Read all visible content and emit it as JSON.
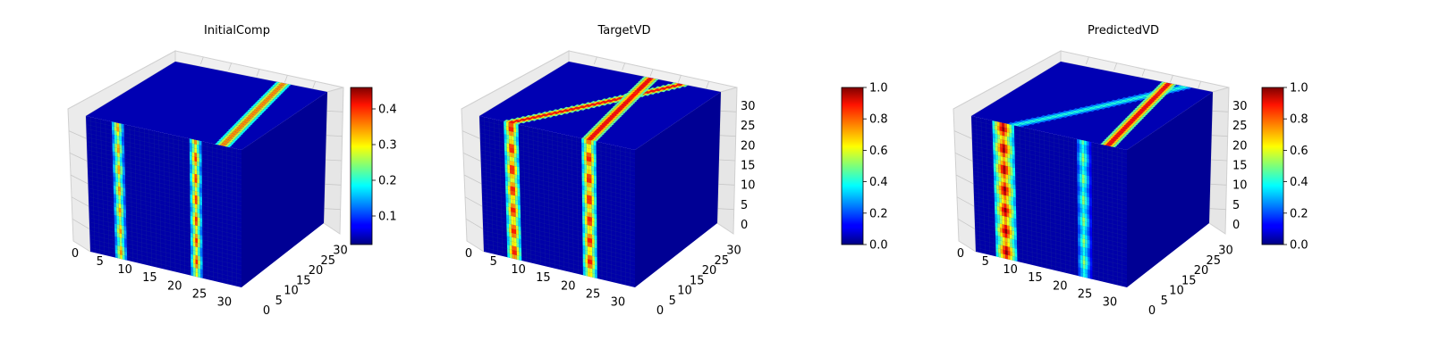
{
  "chart_data": [
    {
      "type": "3d-voxel",
      "title": "InitialComp",
      "xticks": [
        "0",
        "5",
        "10",
        "15",
        "20",
        "25",
        "30"
      ],
      "yticks": [
        "0",
        "5",
        "10",
        "15",
        "20",
        "25",
        "30"
      ],
      "zticks": [],
      "xlim": [
        0,
        32
      ],
      "ylim": [
        0,
        32
      ],
      "zlim": [
        0,
        32
      ],
      "colormap": "jet",
      "colorbar": {
        "ticks": [
          "0.1",
          "0.2",
          "0.3",
          "0.4"
        ],
        "tick_values": [
          0.1,
          0.2,
          0.3,
          0.4
        ],
        "range": [
          0.02,
          0.46
        ]
      },
      "features": [
        {
          "kind": "vertical-band",
          "x_center": 6.5,
          "half_width": 1.2,
          "peak_value": 0.35
        },
        {
          "kind": "vertical-band",
          "x_center": 22.5,
          "half_width": 1.2,
          "peak_value": 0.4
        },
        {
          "kind": "top-band",
          "x_center": 28,
          "peak_value": 0.38
        }
      ]
    },
    {
      "type": "3d-voxel",
      "title": "TargetVD",
      "xticks": [
        "0",
        "5",
        "10",
        "15",
        "20",
        "25",
        "30"
      ],
      "yticks": [
        "0",
        "5",
        "10",
        "15",
        "20",
        "25",
        "30"
      ],
      "zticks": [
        "0",
        "5",
        "10",
        "15",
        "20",
        "25",
        "30"
      ],
      "xlim": [
        0,
        32
      ],
      "ylim": [
        0,
        32
      ],
      "zlim": [
        0,
        32
      ],
      "colormap": "jet",
      "colorbar": {
        "ticks": [
          "0.0",
          "0.2",
          "0.4",
          "0.6",
          "0.8",
          "1.0"
        ],
        "tick_values": [
          0.0,
          0.2,
          0.4,
          0.6,
          0.8,
          1.0
        ],
        "range": [
          0.0,
          1.0
        ]
      },
      "features": [
        {
          "kind": "vertical-band",
          "x_center": 6.5,
          "half_width": 1.5,
          "peak_value": 0.95
        },
        {
          "kind": "vertical-band",
          "x_center": 22.5,
          "half_width": 1.5,
          "peak_value": 0.95
        },
        {
          "kind": "top-band",
          "x_center": 6.5,
          "peak_value": 0.95
        },
        {
          "kind": "top-band",
          "x_center": 22.5,
          "peak_value": 0.95
        }
      ]
    },
    {
      "type": "3d-voxel",
      "title": "PredictedVD",
      "xticks": [
        "0",
        "5",
        "10",
        "15",
        "20",
        "25",
        "30"
      ],
      "yticks": [
        "0",
        "5",
        "10",
        "15",
        "20",
        "25",
        "30"
      ],
      "zticks": [
        "0",
        "5",
        "10",
        "15",
        "20",
        "25",
        "30"
      ],
      "xlim": [
        0,
        32
      ],
      "ylim": [
        0,
        32
      ],
      "zlim": [
        0,
        32
      ],
      "colormap": "jet",
      "colorbar": {
        "ticks": [
          "0.0",
          "0.2",
          "0.4",
          "0.6",
          "0.8",
          "1.0"
        ],
        "tick_values": [
          0.0,
          0.2,
          0.4,
          0.6,
          0.8,
          1.0
        ],
        "range": [
          0.0,
          1.0
        ]
      },
      "features": [
        {
          "kind": "vertical-band",
          "x_center": 6.5,
          "half_width": 2.2,
          "peak_value": 1.0
        },
        {
          "kind": "vertical-band",
          "x_center": 23,
          "half_width": 1.3,
          "peak_value": 0.55
        },
        {
          "kind": "top-band",
          "x_center": 9,
          "peak_value": 0.45
        },
        {
          "kind": "top-band",
          "x_center": 28,
          "peak_value": 0.95
        }
      ]
    }
  ]
}
